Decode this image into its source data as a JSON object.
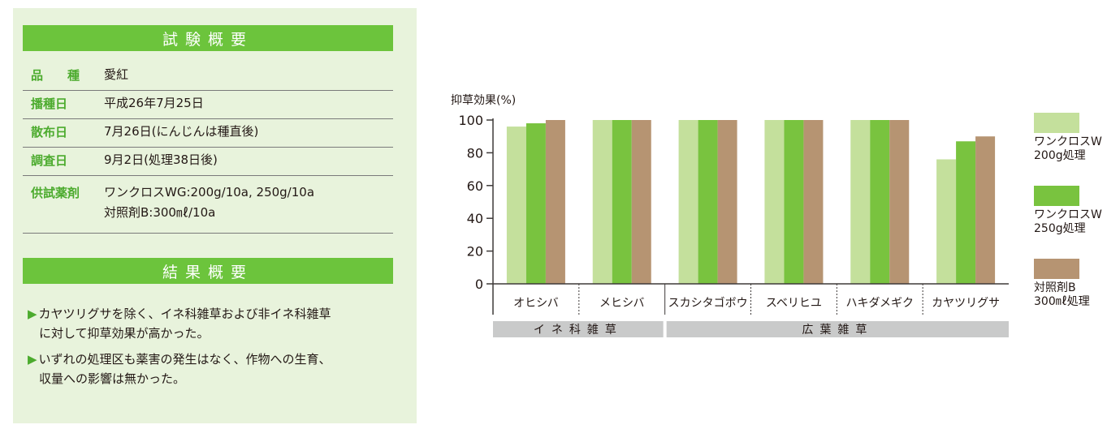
{
  "summary": {
    "test_header": "試験概要",
    "rows": [
      {
        "label": "品　　種",
        "value": "愛紅",
        "value2": ""
      },
      {
        "label": "播種日",
        "value": "平成26年7月25日",
        "value2": ""
      },
      {
        "label": "散布日",
        "value": "7月26日(にんじんは種直後)",
        "value2": ""
      },
      {
        "label": "調査日",
        "value": "9月2日(処理38日後)",
        "value2": ""
      },
      {
        "label": "供試薬剤",
        "value": "ワンクロスWG:200g/10a, 250g/10a",
        "value2": "対照剤B:300㎖/10a"
      }
    ],
    "result_header": "結果概要",
    "bullets": [
      {
        "mark": "▶",
        "line1": "カヤツリグサを除く、イネ科雑草および非イネ科雑草",
        "line2": "に対して抑草効果が高かった。"
      },
      {
        "mark": "▶",
        "line1": "いずれの処理区も薬害の発生はなく、作物への生育、",
        "line2": "収量への影響は無かった。"
      }
    ]
  },
  "chart_data": {
    "type": "bar",
    "ylabel": "抑草効果(%)",
    "ylim": [
      0,
      100
    ],
    "yticks": [
      0,
      20,
      40,
      60,
      80,
      100
    ],
    "categories": [
      "オヒシバ",
      "メヒシバ",
      "スカシタゴボウ",
      "スベリヒユ",
      "ハキダメギク",
      "カヤツリグサ"
    ],
    "groups": [
      {
        "label": "イネ科雑草",
        "categories": [
          0,
          1
        ]
      },
      {
        "label": "広葉雑草",
        "categories": [
          2,
          3,
          4,
          5
        ]
      }
    ],
    "series": [
      {
        "name": "ワンクロスW 200g処理",
        "line1": "ワンクロスW",
        "line2": "200g処理",
        "color": "#c4e09c",
        "values": [
          96,
          100,
          100,
          100,
          100,
          76
        ]
      },
      {
        "name": "ワンクロスW 250g処理",
        "line1": "ワンクロスW",
        "line2": "250g処理",
        "color": "#79c33f",
        "values": [
          98,
          100,
          100,
          100,
          100,
          87
        ]
      },
      {
        "name": "対照剤B 300㎖処理",
        "line1": "対照剤B",
        "line2": "300㎖処理",
        "color": "#b69472",
        "values": [
          100,
          100,
          100,
          100,
          100,
          90
        ]
      }
    ],
    "grid": false,
    "legend": "right"
  }
}
